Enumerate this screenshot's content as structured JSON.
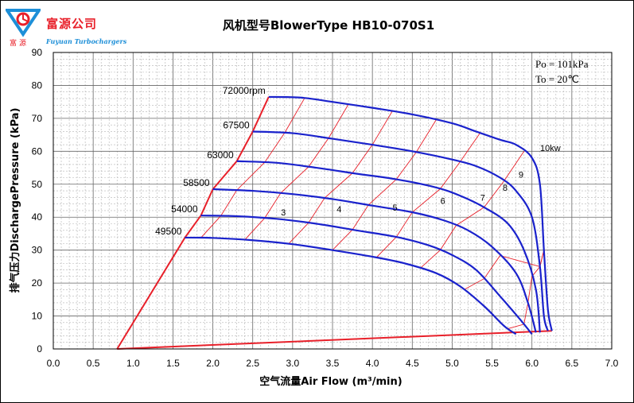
{
  "brand": {
    "name_cn": "富源公司",
    "name_cn_small": "富源",
    "name_en": "Fuyuan Turbochargers",
    "colors": {
      "red": "#e8202a",
      "blue": "#1d8fd8"
    }
  },
  "chart_data": {
    "type": "line",
    "title": "风机型号BlowerType HB10-070S1",
    "xlabel": "空气流量Air Flow (m³/min)",
    "ylabel": "排气压力DischargePressure (kPa)",
    "xlim": [
      0.0,
      7.0
    ],
    "ylim": [
      0,
      90
    ],
    "xticks": [
      "0.0",
      "0.5",
      "1.0",
      "1.5",
      "2.0",
      "2.5",
      "3.0",
      "3.5",
      "4.0",
      "4.5",
      "5.0",
      "5.5",
      "6.0",
      "6.5",
      "7.0"
    ],
    "yticks": [
      "0",
      "10",
      "20",
      "30",
      "40",
      "50",
      "60",
      "70",
      "80",
      "90"
    ],
    "grid": true,
    "conditions": [
      "Po = 101kPa",
      "To = 20℃"
    ],
    "speed_lines": [
      {
        "name": "72000rpm",
        "points": [
          [
            2.7,
            76.5
          ],
          [
            3.1,
            76.3
          ],
          [
            3.5,
            75
          ],
          [
            4.0,
            73.2
          ],
          [
            4.5,
            71.2
          ],
          [
            5.0,
            68.5
          ],
          [
            5.3,
            66
          ],
          [
            5.6,
            63.5
          ],
          [
            5.8,
            62
          ],
          [
            6.0,
            58
          ],
          [
            6.1,
            50
          ],
          [
            6.15,
            30
          ],
          [
            6.2,
            12
          ],
          [
            6.25,
            5.5
          ]
        ]
      },
      {
        "name": "67500",
        "points": [
          [
            2.5,
            66
          ],
          [
            3.0,
            65.5
          ],
          [
            3.5,
            63.8
          ],
          [
            4.0,
            62
          ],
          [
            4.5,
            60
          ],
          [
            5.0,
            57.5
          ],
          [
            5.3,
            55.5
          ],
          [
            5.6,
            52
          ],
          [
            5.8,
            48
          ],
          [
            6.0,
            40
          ],
          [
            6.1,
            25
          ],
          [
            6.15,
            10
          ],
          [
            6.2,
            5.5
          ]
        ]
      },
      {
        "name": "63000",
        "points": [
          [
            2.3,
            57
          ],
          [
            2.8,
            56.5
          ],
          [
            3.3,
            55
          ],
          [
            3.8,
            53.2
          ],
          [
            4.3,
            51.5
          ],
          [
            4.8,
            49
          ],
          [
            5.1,
            46.5
          ],
          [
            5.4,
            43
          ],
          [
            5.7,
            38
          ],
          [
            5.9,
            30
          ],
          [
            6.05,
            18
          ],
          [
            6.1,
            5
          ]
        ]
      },
      {
        "name": "58500",
        "points": [
          [
            2.0,
            48.5
          ],
          [
            2.5,
            48
          ],
          [
            3.0,
            47
          ],
          [
            3.5,
            45.5
          ],
          [
            4.0,
            43.5
          ],
          [
            4.5,
            41.5
          ],
          [
            4.9,
            39
          ],
          [
            5.2,
            36
          ],
          [
            5.5,
            31
          ],
          [
            5.8,
            23
          ],
          [
            5.95,
            14
          ],
          [
            6.05,
            5
          ]
        ]
      },
      {
        "name": "54000",
        "points": [
          [
            1.85,
            40.5
          ],
          [
            2.3,
            40.3
          ],
          [
            2.8,
            39.5
          ],
          [
            3.3,
            38
          ],
          [
            3.8,
            36
          ],
          [
            4.3,
            34
          ],
          [
            4.7,
            31.5
          ],
          [
            5.0,
            28.5
          ],
          [
            5.3,
            24
          ],
          [
            5.6,
            16
          ],
          [
            5.85,
            9
          ],
          [
            6.0,
            4.5
          ]
        ]
      },
      {
        "name": "49500",
        "points": [
          [
            1.65,
            33.8
          ],
          [
            2.0,
            33.7
          ],
          [
            2.5,
            33
          ],
          [
            3.0,
            31.8
          ],
          [
            3.5,
            30
          ],
          [
            4.0,
            28
          ],
          [
            4.4,
            26
          ],
          [
            4.8,
            23
          ],
          [
            5.1,
            19
          ],
          [
            5.4,
            13
          ],
          [
            5.65,
            7
          ],
          [
            5.8,
            4.5
          ]
        ]
      }
    ],
    "efficiency_lines": [
      {
        "name": "3",
        "label_pos": [
          3.8,
          41.5
        ]
      },
      {
        "name": "4",
        "label_pos": [
          4.5,
          42.5
        ]
      },
      {
        "name": "5",
        "label_pos": [
          5.2,
          43
        ]
      },
      {
        "name": "6",
        "label_pos": [
          5.8,
          45
        ]
      },
      {
        "name": "7",
        "label_pos": [
          6.3,
          46
        ]
      },
      {
        "name": "8",
        "label_pos": [
          6.58,
          49
        ]
      },
      {
        "name": "9",
        "label_pos": [
          6.78,
          53
        ]
      },
      {
        "name": "10kw",
        "label_pos": [
          7.05,
          61
        ]
      }
    ],
    "surge_line": [
      [
        0.8,
        0
      ],
      [
        1.65,
        33.8
      ],
      [
        1.85,
        40.5
      ],
      [
        2.0,
        48.5
      ],
      [
        2.3,
        57
      ],
      [
        2.5,
        66
      ],
      [
        2.7,
        76.5
      ]
    ],
    "base_line": [
      [
        0.8,
        0
      ],
      [
        6.25,
        5.5
      ]
    ]
  }
}
